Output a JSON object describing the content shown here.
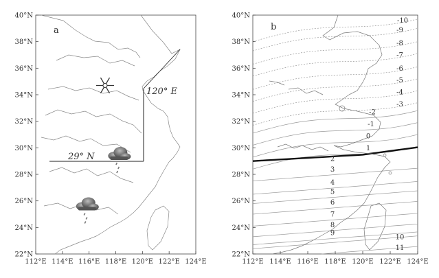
{
  "panels": [
    {
      "id": "a",
      "label": "a",
      "lon_range": [
        112,
        124
      ],
      "lat_range": [
        22,
        40
      ],
      "x_ticks": [
        "112°E",
        "114°E",
        "116°E",
        "118°E",
        "120°E",
        "122°E",
        "124°E"
      ],
      "y_ticks": [
        "22°N",
        "24°N",
        "26°N",
        "28°N",
        "30°N",
        "32°N",
        "34°N",
        "36°N",
        "38°N",
        "40°N"
      ],
      "annotations": {
        "lat_line_label": "29° N",
        "lon_line_label": "120° E"
      },
      "reference_lines": {
        "lat": 29,
        "lon": 120
      },
      "symbols": [
        {
          "icon": "snowflake-icon",
          "lon": 117.2,
          "lat": 34.7
        },
        {
          "icon": "rain-cloud-icon",
          "lon": 118.2,
          "lat": 29.5
        },
        {
          "icon": "rain-cloud-icon",
          "lon": 115.8,
          "lat": 25.7
        }
      ]
    },
    {
      "id": "b",
      "label": "b",
      "lon_range": [
        112,
        124
      ],
      "lat_range": [
        22,
        40
      ],
      "x_ticks": [
        "112°E",
        "114°E",
        "116°E",
        "118°E",
        "120°E",
        "122°E",
        "124°E"
      ],
      "y_ticks": [
        "22°N",
        "24°N",
        "26°N",
        "28°N",
        "30°N",
        "32°N",
        "34°N",
        "36°N",
        "38°N",
        "40°N"
      ],
      "isoline_labels": [
        {
          "text": "-10",
          "lon": 122.9,
          "lat": 39.6
        },
        {
          "text": "-9",
          "lon": 122.7,
          "lat": 38.9
        },
        {
          "text": "-8",
          "lon": 122.7,
          "lat": 37.9
        },
        {
          "text": "-7",
          "lon": 122.7,
          "lat": 37.0
        },
        {
          "text": "-6",
          "lon": 122.7,
          "lat": 36.0
        },
        {
          "text": "-5",
          "lon": 122.7,
          "lat": 35.1
        },
        {
          "text": "-4",
          "lon": 122.7,
          "lat": 34.2
        },
        {
          "text": "-3",
          "lon": 122.7,
          "lat": 33.3
        },
        {
          "text": "-2",
          "lon": 120.7,
          "lat": 32.7
        },
        {
          "text": "-1",
          "lon": 120.6,
          "lat": 31.8
        },
        {
          "text": "0",
          "lon": 120.4,
          "lat": 30.9
        },
        {
          "text": "1",
          "lon": 120.4,
          "lat": 30.0
        },
        {
          "text": "2",
          "lon": 117.8,
          "lat": 29.2
        },
        {
          "text": "3",
          "lon": 117.8,
          "lat": 28.4
        },
        {
          "text": "4",
          "lon": 117.8,
          "lat": 27.4
        },
        {
          "text": "5",
          "lon": 117.8,
          "lat": 26.7
        },
        {
          "text": "6",
          "lon": 117.8,
          "lat": 25.9
        },
        {
          "text": "7",
          "lon": 117.8,
          "lat": 25.0
        },
        {
          "text": "8",
          "lon": 117.8,
          "lat": 24.2
        },
        {
          "text": "9",
          "lon": 117.8,
          "lat": 23.6
        },
        {
          "text": "10",
          "lon": 122.7,
          "lat": 23.3
        },
        {
          "text": "11",
          "lon": 122.7,
          "lat": 22.5
        }
      ],
      "bold_isoline": "2"
    }
  ],
  "colors": {
    "frame": "#444444",
    "coastline": "#888888",
    "isoline": "#999999",
    "bold_isoline": "#111111",
    "cloud_dark": "#555555",
    "cloud_light": "#bbbbbb"
  }
}
